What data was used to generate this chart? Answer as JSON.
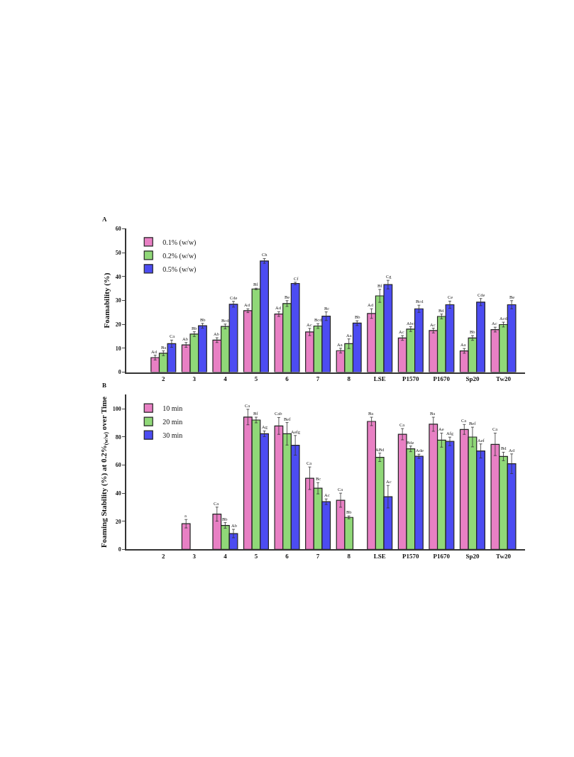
{
  "chart_data": [
    {
      "type": "bar",
      "title": "A",
      "ylabel": "Foamability (%)",
      "categories": [
        "2",
        "3",
        "4",
        "5",
        "6",
        "7",
        "8",
        "LSE",
        "P1570",
        "P1670",
        "Sp20",
        "Tw20"
      ],
      "ylim": [
        0,
        60
      ],
      "yticks": [
        0,
        10,
        20,
        30,
        40,
        50,
        60
      ],
      "legend": "top left",
      "series": [
        {
          "name": "0.1% (w/w)",
          "color": "#e880c4",
          "values": [
            6.1,
            11.4,
            13.4,
            25.7,
            24.3,
            16.8,
            9.0,
            24.5,
            14.3,
            17.4,
            8.9,
            17.8
          ],
          "errors": [
            1.0,
            1.0,
            1.0,
            0.8,
            1.0,
            1.5,
            1.0,
            2.0,
            1.0,
            1.0,
            1.0,
            1.0
          ],
          "value_labels": [
            "Ad",
            "Ab",
            "Ab",
            "Ad",
            "Ad",
            "Ac",
            "Aa",
            "Ad",
            "Ac",
            "Ac",
            "Aa",
            "Ac"
          ]
        },
        {
          "name": "0.2% (w/w)",
          "color": "#90d878",
          "values": [
            7.9,
            15.9,
            19.1,
            34.8,
            28.7,
            19.3,
            11.9,
            31.9,
            18.0,
            23.3,
            14.3,
            19.9
          ],
          "errors": [
            1.0,
            1.0,
            1.0,
            0.3,
            1.2,
            1.0,
            2.0,
            2.7,
            1.0,
            1.0,
            1.0,
            1.0
          ],
          "value_labels": [
            "Ba",
            "Bb",
            "Bcd",
            "Bf",
            "Be",
            "Bcd",
            "Aa",
            "Bf",
            "Abc",
            "Bd",
            "Bb",
            "Acd"
          ]
        },
        {
          "name": "0.5% (w/w)",
          "color": "#4c4cf2",
          "values": [
            11.9,
            19.4,
            28.4,
            46.5,
            37.1,
            23.4,
            20.5,
            36.6,
            26.5,
            28.2,
            29.3,
            28.2
          ],
          "errors": [
            1.5,
            1.0,
            1.2,
            1.0,
            0.5,
            1.8,
            1.0,
            1.8,
            1.5,
            1.5,
            1.5,
            1.7
          ],
          "value_labels": [
            "Ca",
            "Bb",
            "Cde",
            "Ch",
            "Cf",
            "Bc",
            "Bb",
            "Cg",
            "Bcd",
            "Ce",
            "Cde",
            "Be"
          ]
        }
      ]
    },
    {
      "type": "bar",
      "title": "B",
      "ylabel": "Foaming Stability (%) at 0.2%$_{(w/w)}$ over Time",
      "categories": [
        "2",
        "3",
        "4",
        "5",
        "6",
        "7",
        "8",
        "LSE",
        "P1570",
        "P1670",
        "Sp20",
        "Tw20"
      ],
      "ylim": [
        0,
        110
      ],
      "yticks": [
        0,
        20,
        40,
        60,
        80,
        100
      ],
      "legend": "top left",
      "series": [
        {
          "name": "10 min",
          "color": "#e880c4",
          "values": [
            null,
            18.3,
            25.1,
            94.1,
            87.8,
            50.6,
            35.0,
            91.0,
            81.9,
            89.0,
            85.3,
            74.7
          ],
          "errors": [
            null,
            3.0,
            5.0,
            5.5,
            6.0,
            8.0,
            5.0,
            3.0,
            4.0,
            5.0,
            3.5,
            8.0
          ],
          "value_labels": [
            null,
            "a",
            "Ca",
            "Ca",
            "Cab",
            "Ca",
            "Ca",
            "Ba",
            "Ca",
            "Ba",
            "Ca",
            "Ca"
          ]
        },
        {
          "name": "20 min",
          "color": "#90d878",
          "values": [
            null,
            null,
            17.1,
            92.0,
            82.2,
            43.5,
            22.8,
            65.5,
            71.5,
            77.7,
            79.9,
            66.1
          ],
          "errors": [
            null,
            null,
            2.0,
            2.0,
            8.0,
            4.0,
            1.0,
            3.0,
            2.0,
            5.0,
            7.0,
            3.0
          ],
          "value_labels": [
            null,
            null,
            "Bb",
            "Bf",
            "Bef",
            "Bc",
            "Bb",
            "ABd",
            "Bde",
            "Ae",
            "Bef",
            "Bd"
          ]
        },
        {
          "name": "30 min",
          "color": "#4c4cf2",
          "values": [
            null,
            null,
            11.3,
            82.2,
            74.0,
            33.9,
            null,
            37.5,
            66.2,
            76.8,
            70.0,
            60.9
          ],
          "errors": [
            null,
            null,
            3.0,
            2.0,
            7.0,
            2.0,
            null,
            8.0,
            1.5,
            3.0,
            5.0,
            7.0
          ],
          "value_labels": [
            null,
            null,
            "Ab",
            "Ag",
            "Aefg",
            "Ac",
            null,
            "Ac",
            "Ade",
            "Afg",
            "Aef",
            "Ad"
          ]
        }
      ]
    }
  ]
}
